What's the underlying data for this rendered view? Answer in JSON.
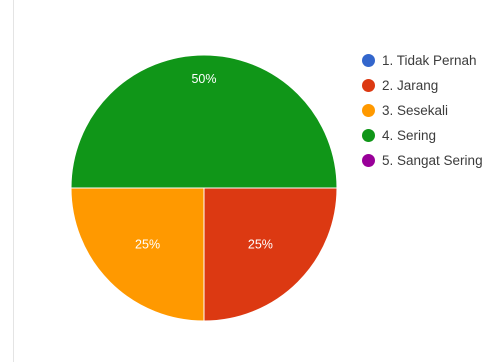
{
  "chart_data": {
    "type": "pie",
    "categories": [
      "1. Tidak Pernah",
      "2. Jarang",
      "3. Sesekali",
      "4. Sering",
      "5. Sangat Sering"
    ],
    "values": [
      0,
      25,
      25,
      50,
      0
    ],
    "slice_labels": [
      "",
      "25%",
      "25%",
      "50%",
      ""
    ],
    "colors": [
      "#3366cc",
      "#dc3912",
      "#ff9900",
      "#109618",
      "#990099"
    ],
    "legend_position": "right"
  }
}
